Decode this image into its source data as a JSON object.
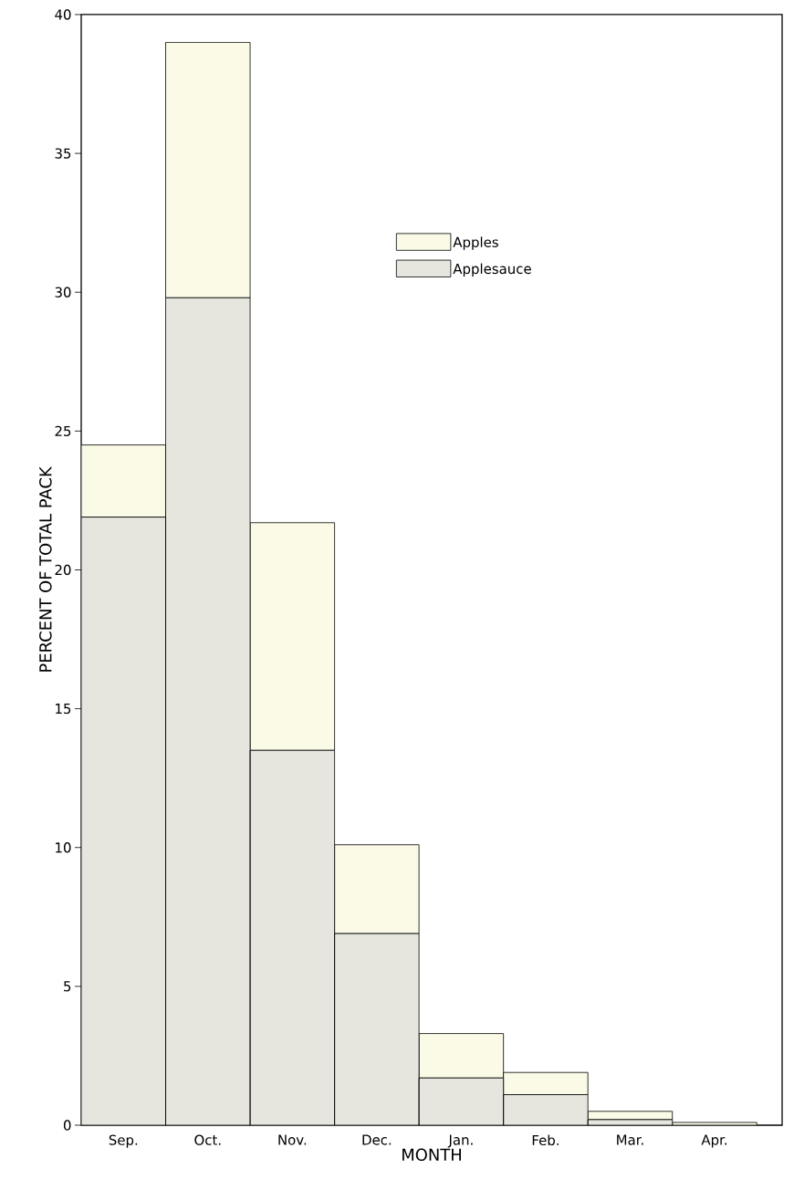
{
  "chart_data": {
    "type": "bar",
    "stacked": true,
    "xlabel": "MONTH",
    "ylabel": "PERCENT OF TOTAL PACK",
    "categories": [
      "Sep.",
      "Oct.",
      "Nov.",
      "Dec.",
      "Jan.",
      "Feb.",
      "Mar.",
      "Apr."
    ],
    "series": [
      {
        "name": "Applesauce",
        "color": "#e6e6df",
        "values": [
          21.9,
          29.8,
          13.5,
          6.9,
          1.7,
          1.1,
          0.2,
          0
        ]
      },
      {
        "name": "Apples",
        "color": "#fafae6",
        "values": [
          2.6,
          9.2,
          8.2,
          3.2,
          1.6,
          0.8,
          0.3,
          0.1
        ]
      }
    ],
    "ylim": [
      0,
      40
    ],
    "yticks": [
      0,
      5,
      10,
      15,
      20,
      25,
      30,
      35,
      40
    ],
    "grid": false,
    "legend": "top right"
  }
}
